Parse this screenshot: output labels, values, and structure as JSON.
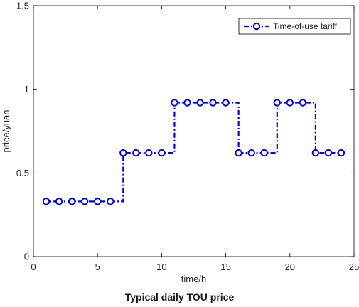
{
  "caption": "Typical daily TOU price",
  "chart_data": {
    "type": "line",
    "title": "",
    "xlabel": "time/h",
    "ylabel": "price/yuan",
    "xlim": [
      0,
      25
    ],
    "ylim": [
      0,
      1.5
    ],
    "x_ticks": [
      0,
      5,
      10,
      15,
      20,
      25
    ],
    "y_ticks": [
      0,
      0.5,
      1,
      1.5
    ],
    "x_tick_labels": [
      "0",
      "5",
      "10",
      "15",
      "20",
      "25"
    ],
    "y_tick_labels": [
      "0",
      "0.5",
      "1",
      "1.5"
    ],
    "grid": false,
    "legend_position": "top-right",
    "line_style": "dash-dot stairs with circle markers",
    "series_color": "#0000ee",
    "series": [
      {
        "name": "Time-of-use tariff",
        "x": [
          1,
          2,
          3,
          4,
          5,
          6,
          7,
          8,
          9,
          10,
          11,
          12,
          13,
          14,
          15,
          16,
          17,
          18,
          19,
          20,
          21,
          22,
          23,
          24
        ],
        "values": [
          0.33,
          0.33,
          0.33,
          0.33,
          0.33,
          0.33,
          0.62,
          0.62,
          0.62,
          0.62,
          0.92,
          0.92,
          0.92,
          0.92,
          0.92,
          0.62,
          0.62,
          0.62,
          0.92,
          0.92,
          0.92,
          0.62,
          0.62,
          0.62
        ]
      }
    ]
  }
}
